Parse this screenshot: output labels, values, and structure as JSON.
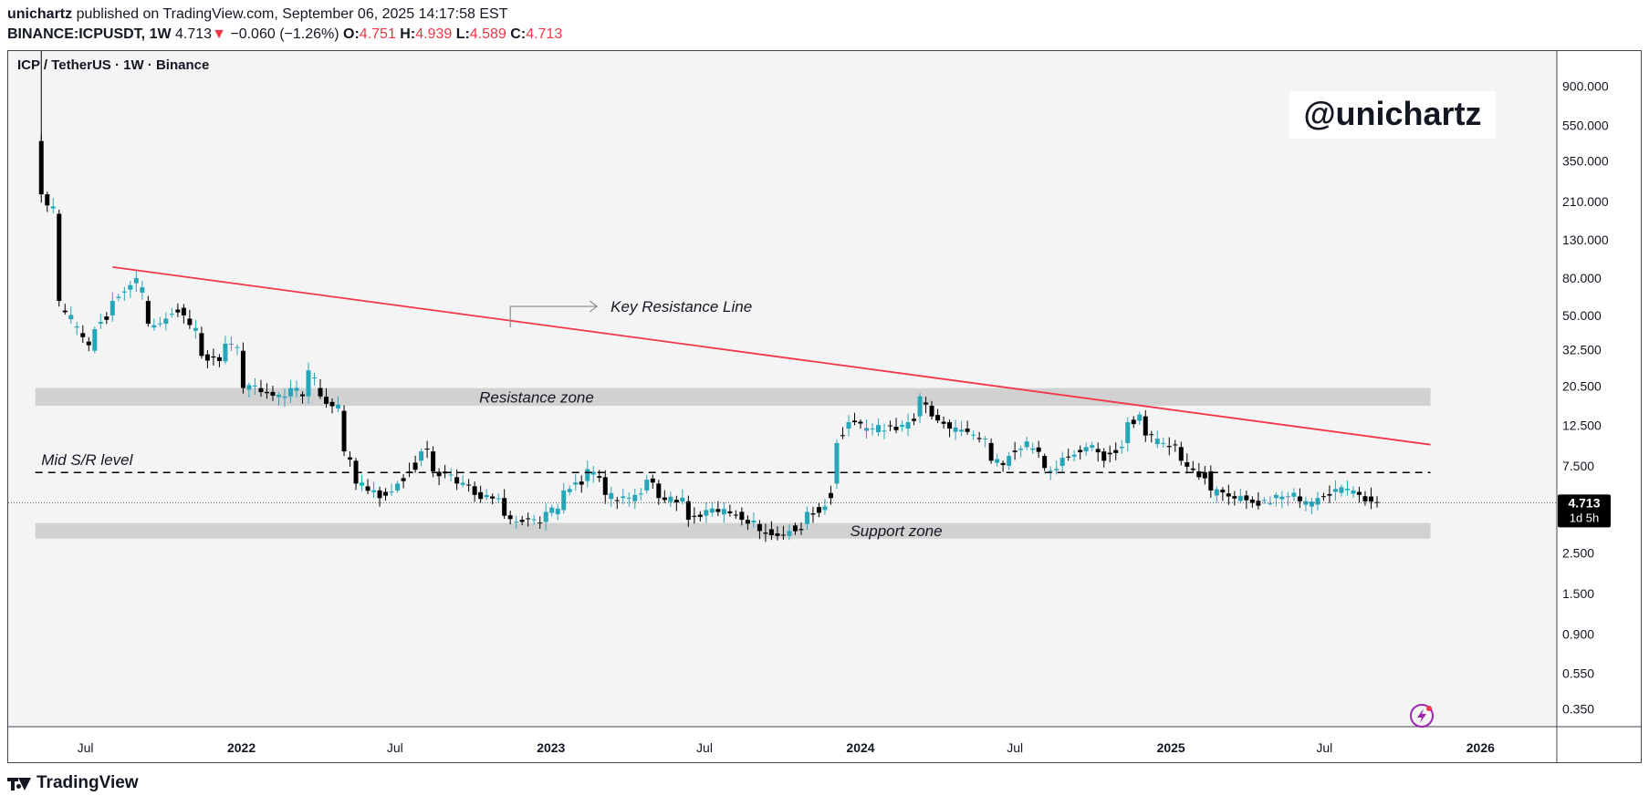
{
  "header": {
    "author": "unichartz",
    "published_text": "published on TradingView.com, September 06, 2025 14:17:58 EST",
    "symbol": "BINANCE:ICPUSDT",
    "interval": ", 1W",
    "last": "4.713",
    "change_arrow": "▼",
    "change": "−0.060 (−1.26%)",
    "open_label": "O:",
    "open": "4.751",
    "high_label": "H:",
    "high": "4.939",
    "low_label": "L:",
    "low": "4.589",
    "close_label": "C:",
    "close": "4.713"
  },
  "colors": {
    "up": "#26a6b9",
    "down": "#000000",
    "resistance_line": "#f23645",
    "zone": "#d1d1d1",
    "background": "#f4f4f4",
    "negative": "#f23645"
  },
  "chart_data": {
    "type": "candlestick",
    "title": "ICP / TetherUS · 1W · Binance",
    "watermark": "@unichartz",
    "yscale": "log",
    "ylim": [
      0.28,
      1400
    ],
    "xlim": [
      "2021-04-01",
      "2026-04-01"
    ],
    "y_ticks": [
      "900.000",
      "550.000",
      "350.000",
      "210.000",
      "130.000",
      "80.000",
      "50.000",
      "32.500",
      "20.500",
      "12.500",
      "7.500",
      "2.500",
      "1.500",
      "0.900",
      "0.550",
      "0.350"
    ],
    "y_tick_values": [
      900,
      550,
      350,
      210,
      130,
      80,
      50,
      32.5,
      20.5,
      12.5,
      7.5,
      2.5,
      1.5,
      0.9,
      0.55,
      0.35
    ],
    "x_ticks": [
      "Jul",
      "2022",
      "Jul",
      "2023",
      "Jul",
      "2024",
      "Jul",
      "2025",
      "Jul",
      "2026"
    ],
    "x_tick_dates": [
      "2021-07-01",
      "2022-01-01",
      "2022-07-01",
      "2023-01-01",
      "2023-07-01",
      "2024-01-01",
      "2024-07-01",
      "2025-01-01",
      "2025-07-01",
      "2026-01-01"
    ],
    "last_price": "4.713",
    "countdown": "1d 5h",
    "annotations": {
      "key_resistance": {
        "label": "Key Resistance Line",
        "start": [
          "2021-08-02",
          92
        ],
        "end": [
          "2025-11-03",
          9.8
        ]
      },
      "resistance_zone": {
        "label": "Resistance zone",
        "low": 16,
        "high": 20,
        "start": "2021-05-03",
        "end": "2025-11-03"
      },
      "support_zone": {
        "label": "Support zone",
        "low": 3.0,
        "high": 3.65,
        "start": "2021-05-03",
        "end": "2025-11-03"
      },
      "mid_sr": {
        "label": "Mid S/R level",
        "value": 6.9,
        "start": "2021-05-03",
        "end": "2025-11-03"
      }
    },
    "keypoints": [
      [
        "2021-05-10",
        450,
        230
      ],
      [
        "2021-05-17",
        230,
        200
      ],
      [
        "2021-05-31",
        180,
        60
      ],
      [
        "2021-06-28",
        40,
        38
      ],
      [
        "2021-07-12",
        32,
        42
      ],
      [
        "2021-08-02",
        50,
        60
      ],
      [
        "2021-08-30",
        75,
        80
      ],
      [
        "2021-09-13",
        60,
        45
      ],
      [
        "2021-10-04",
        45,
        48
      ],
      [
        "2021-10-25",
        55,
        50
      ],
      [
        "2021-11-15",
        40,
        30
      ],
      [
        "2021-12-13",
        28,
        35
      ],
      [
        "2022-01-03",
        32,
        20
      ],
      [
        "2022-01-24",
        20,
        19
      ],
      [
        "2022-02-28",
        18,
        20
      ],
      [
        "2022-03-21",
        18,
        25
      ],
      [
        "2022-04-04",
        20,
        18
      ],
      [
        "2022-05-02",
        15,
        9
      ],
      [
        "2022-05-16",
        8,
        6
      ],
      [
        "2022-06-13",
        5.5,
        5
      ],
      [
        "2022-07-04",
        5.5,
        6
      ],
      [
        "2022-08-01",
        8,
        9
      ],
      [
        "2022-08-15",
        9,
        7
      ],
      [
        "2022-09-12",
        6.5,
        6
      ],
      [
        "2022-10-03",
        5.8,
        5.2
      ],
      [
        "2022-11-07",
        5,
        4
      ],
      [
        "2022-11-28",
        3.8,
        3.7
      ],
      [
        "2022-12-26",
        3.7,
        4.2
      ],
      [
        "2023-01-16",
        4.3,
        5.5
      ],
      [
        "2023-02-13",
        6.2,
        7.2
      ],
      [
        "2023-03-06",
        6.5,
        5.2
      ],
      [
        "2023-04-10",
        4.8,
        5.2
      ],
      [
        "2023-04-24",
        5.5,
        6.3
      ],
      [
        "2023-05-08",
        6.0,
        5.0
      ],
      [
        "2023-06-12",
        4.8,
        3.8
      ],
      [
        "2023-07-03",
        4.0,
        4.3
      ],
      [
        "2023-08-14",
        4.2,
        3.8
      ],
      [
        "2023-09-04",
        3.6,
        3.3
      ],
      [
        "2023-09-25",
        3.2,
        3.1
      ],
      [
        "2023-10-09",
        3.1,
        3.3
      ],
      [
        "2023-10-30",
        3.6,
        4.2
      ],
      [
        "2023-11-20",
        4.3,
        4.5
      ],
      [
        "2023-12-04",
        6.0,
        10
      ],
      [
        "2023-12-18",
        12,
        13
      ],
      [
        "2024-01-15",
        12,
        12
      ],
      [
        "2024-02-26",
        12,
        13
      ],
      [
        "2024-03-11",
        14,
        18
      ],
      [
        "2024-03-25",
        16,
        14
      ],
      [
        "2024-04-15",
        13,
        12
      ],
      [
        "2024-05-06",
        12,
        11.5
      ],
      [
        "2024-06-03",
        10,
        8
      ],
      [
        "2024-06-24",
        7.5,
        8.5
      ],
      [
        "2024-07-15",
        9.5,
        10.2
      ],
      [
        "2024-08-05",
        8.5,
        7.3
      ],
      [
        "2024-08-26",
        7.5,
        8.3
      ],
      [
        "2024-09-23",
        9,
        9.5
      ],
      [
        "2024-10-14",
        9,
        8
      ],
      [
        "2024-11-11",
        10,
        13
      ],
      [
        "2024-12-02",
        14,
        11
      ],
      [
        "2024-12-23",
        10,
        10
      ],
      [
        "2025-01-13",
        9.5,
        8
      ],
      [
        "2025-02-03",
        7,
        6.5
      ],
      [
        "2025-02-17",
        7,
        5.5
      ],
      [
        "2025-03-10",
        5.3,
        5.1
      ],
      [
        "2025-04-07",
        4.9,
        4.7
      ],
      [
        "2025-05-05",
        5.0,
        5.2
      ],
      [
        "2025-06-02",
        5.1,
        4.8
      ],
      [
        "2025-06-23",
        4.6,
        5.0
      ],
      [
        "2025-07-14",
        5.4,
        5.6
      ],
      [
        "2025-08-11",
        5.4,
        5.2
      ],
      [
        "2025-09-01",
        4.751,
        4.713
      ]
    ]
  }
}
